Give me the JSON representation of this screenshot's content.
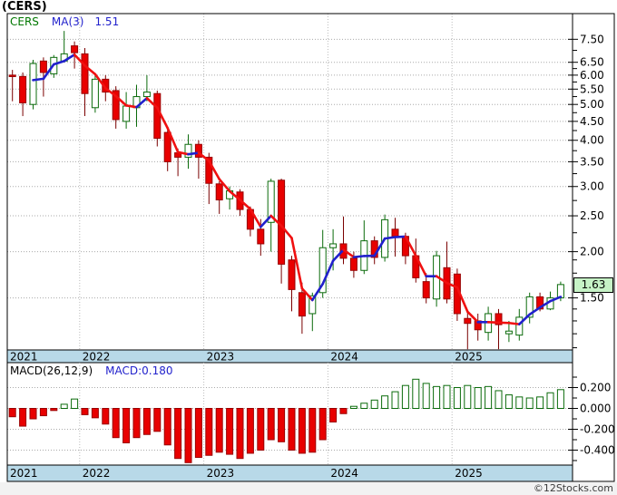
{
  "title": "(CERS)",
  "legend": {
    "symbol": "CERS",
    "ma_label": "MA(3)",
    "ma_value": "1.51"
  },
  "macd_legend": {
    "label": "MACD(26,12,9)",
    "value_label": "MACD:0.180"
  },
  "price_badge": "1.63",
  "copyright": "©12Stocks.com",
  "colors": {
    "band": "#b8d9e8",
    "grid": "#aaaaaa",
    "up_stroke": "#0b6b0b",
    "up_fill": "#ffffff",
    "down_fill": "#e80000",
    "down_stroke": "#990000",
    "down_wick": "#7a0000",
    "ma_rising": "#2020cc",
    "ma_falling": "#f01010",
    "badge_bg": "#c6f2c6",
    "legend_symbol": "#007700",
    "legend_blue": "#2222cc"
  },
  "axes": {
    "price_ticks": [
      7.5,
      6.5,
      6.0,
      5.5,
      5.0,
      4.5,
      4.0,
      3.5,
      3.0,
      2.5,
      2.0,
      1.5
    ],
    "price_tick_labels": [
      "7.50",
      "6.50",
      "6.00",
      "5.50",
      "5.00",
      "4.50",
      "4.00",
      "3.50",
      "3.00",
      "2.50",
      "2.00",
      "1.50"
    ],
    "price_minor_ticks": [
      7.0,
      6.25,
      5.75,
      5.25,
      4.75,
      4.25,
      3.75,
      3.25,
      2.75,
      2.25,
      1.9,
      1.75,
      1.4,
      1.3,
      1.2,
      1.1
    ],
    "macd_ticks": [
      0.2,
      0.0,
      -0.2,
      -0.4
    ],
    "macd_tick_labels": [
      "0.200",
      "0.000",
      "-0.200",
      "-0.400"
    ],
    "macd_minor_ticks": [
      0.3,
      0.1,
      -0.1,
      -0.3,
      -0.5
    ],
    "years": [
      {
        "label": "2021",
        "index": -1
      },
      {
        "label": "2022",
        "index": 7
      },
      {
        "label": "2023",
        "index": 19
      },
      {
        "label": "2024",
        "index": 31
      },
      {
        "label": "2025",
        "index": 43
      }
    ]
  },
  "chart_data": [
    {
      "type": "candlestick",
      "symbol": "CERS",
      "timeframe": "monthly",
      "y_scale": "log",
      "ylim": [
        1.085,
        8.8
      ],
      "grid": true,
      "months": [
        "2021-06",
        "2021-07",
        "2021-08",
        "2021-09",
        "2021-10",
        "2021-11",
        "2021-12",
        "2022-01",
        "2022-02",
        "2022-03",
        "2022-04",
        "2022-05",
        "2022-06",
        "2022-07",
        "2022-08",
        "2022-09",
        "2022-10",
        "2022-11",
        "2022-12",
        "2023-01",
        "2023-02",
        "2023-03",
        "2023-04",
        "2023-05",
        "2023-06",
        "2023-07",
        "2023-08",
        "2023-09",
        "2023-10",
        "2023-11",
        "2023-12",
        "2024-01",
        "2024-02",
        "2024-03",
        "2024-04",
        "2024-05",
        "2024-06",
        "2024-07",
        "2024-08",
        "2024-09",
        "2024-10",
        "2024-11",
        "2024-12",
        "2025-01",
        "2025-02",
        "2025-03",
        "2025-04",
        "2025-05",
        "2025-06",
        "2025-07",
        "2025-08",
        "2025-09",
        "2025-10",
        "2025-11"
      ],
      "open": [
        6.0,
        5.95,
        5.0,
        6.55,
        6.05,
        6.55,
        7.2,
        6.85,
        4.9,
        5.85,
        5.45,
        4.5,
        4.9,
        5.25,
        5.35,
        4.2,
        3.7,
        3.6,
        3.9,
        3.6,
        3.05,
        2.78,
        2.9,
        2.6,
        2.3,
        2.4,
        3.12,
        1.9,
        1.55,
        1.36,
        1.55,
        2.05,
        2.1,
        1.92,
        1.78,
        2.14,
        1.93,
        2.3,
        2.2,
        1.95,
        1.66,
        1.49,
        1.81,
        1.74,
        1.32,
        1.3,
        1.21,
        1.36,
        1.2,
        1.19,
        1.33,
        1.51,
        1.4,
        1.5
      ],
      "high": [
        6.2,
        6.1,
        6.6,
        6.7,
        6.8,
        7.9,
        7.4,
        7.1,
        6.0,
        6.0,
        5.6,
        5.4,
        5.65,
        6.0,
        5.45,
        4.3,
        3.8,
        4.15,
        4.0,
        3.7,
        3.1,
        3.0,
        2.95,
        2.65,
        2.45,
        3.15,
        3.15,
        1.95,
        1.65,
        1.55,
        2.29,
        2.3,
        2.49,
        2.0,
        2.43,
        2.2,
        2.52,
        2.47,
        2.25,
        2.17,
        1.75,
        2.01,
        2.13,
        1.8,
        1.38,
        1.36,
        1.42,
        1.4,
        1.3,
        1.4,
        1.55,
        1.55,
        1.56,
        1.66
      ],
      "low": [
        5.1,
        4.65,
        4.85,
        5.25,
        5.9,
        6.5,
        6.25,
        4.65,
        4.75,
        5.1,
        4.3,
        4.3,
        4.35,
        5.1,
        3.85,
        3.3,
        3.2,
        3.35,
        3.15,
        2.69,
        2.53,
        2.6,
        2.5,
        2.2,
        1.95,
        2.0,
        1.64,
        1.38,
        1.2,
        1.22,
        1.5,
        1.78,
        1.85,
        1.7,
        1.74,
        1.85,
        1.88,
        1.94,
        1.85,
        1.65,
        1.45,
        1.42,
        1.45,
        1.3,
        1.09,
        1.15,
        1.15,
        1.09,
        1.14,
        1.15,
        1.28,
        1.38,
        1.39,
        1.47
      ],
      "close": [
        5.95,
        5.05,
        6.45,
        6.1,
        6.7,
        6.85,
        6.9,
        5.35,
        5.85,
        5.4,
        4.55,
        4.95,
        5.25,
        5.4,
        4.05,
        3.5,
        3.6,
        3.9,
        3.6,
        3.06,
        2.76,
        2.92,
        2.6,
        2.3,
        2.1,
        3.1,
        1.85,
        1.58,
        1.34,
        1.52,
        2.05,
        2.1,
        1.92,
        1.78,
        2.14,
        1.93,
        2.44,
        2.2,
        1.95,
        1.7,
        1.5,
        1.95,
        1.49,
        1.36,
        1.28,
        1.23,
        1.36,
        1.27,
        1.22,
        1.33,
        1.51,
        1.4,
        1.5,
        1.63
      ],
      "last_close": 1.63,
      "overlay": {
        "name": "MA(3)",
        "period": 3,
        "last_value": 1.51
      }
    },
    {
      "type": "bar",
      "name": "MACD(26,12,9)",
      "last_value": 0.18,
      "ylim": [
        -0.55,
        0.43
      ],
      "values": [
        -0.08,
        -0.17,
        -0.1,
        -0.07,
        -0.02,
        0.04,
        0.09,
        -0.06,
        -0.09,
        -0.15,
        -0.28,
        -0.33,
        -0.28,
        -0.25,
        -0.22,
        -0.35,
        -0.48,
        -0.52,
        -0.47,
        -0.45,
        -0.42,
        -0.44,
        -0.48,
        -0.43,
        -0.4,
        -0.3,
        -0.32,
        -0.4,
        -0.43,
        -0.42,
        -0.3,
        -0.13,
        -0.05,
        0.02,
        0.05,
        0.08,
        0.12,
        0.16,
        0.22,
        0.28,
        0.24,
        0.21,
        0.22,
        0.2,
        0.22,
        0.2,
        0.21,
        0.17,
        0.13,
        0.11,
        0.1,
        0.11,
        0.15,
        0.18
      ]
    }
  ]
}
